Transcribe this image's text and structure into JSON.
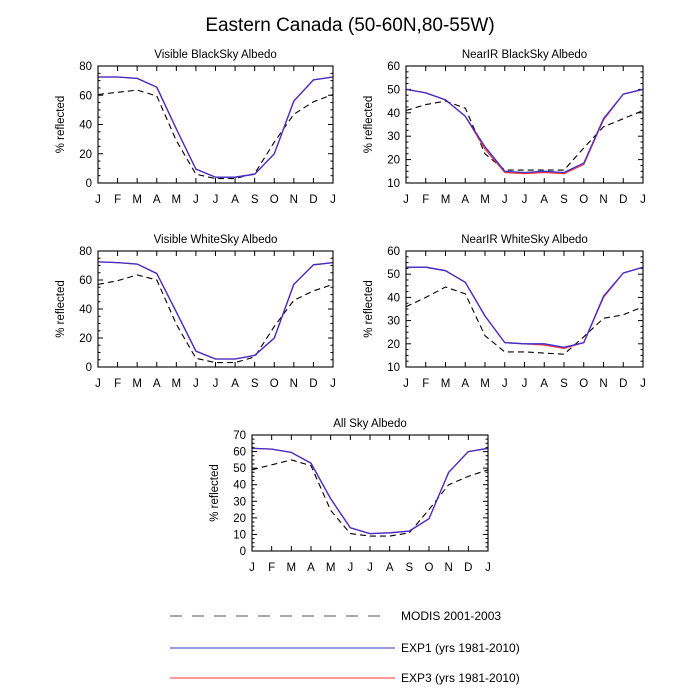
{
  "title": "Eastern Canada (50-60N,80-55W)",
  "colors": {
    "modis": "#000000",
    "exp1": "#3b2fd0",
    "exp3": "#ff3333",
    "legend_modis": "#8c8c8c"
  },
  "legend": [
    {
      "key": "modis",
      "label": "MODIS 2001-2003"
    },
    {
      "key": "exp1",
      "label": "EXP1 (yrs 1981-2010)"
    },
    {
      "key": "exp3",
      "label": "EXP3 (yrs 1981-2010)"
    }
  ],
  "chart_data": [
    {
      "type": "line",
      "title": "Visible BlackSky Albedo",
      "xlabel": "",
      "ylabel": "% reflected",
      "categories": [
        "J",
        "F",
        "M",
        "A",
        "M",
        "J",
        "J",
        "A",
        "S",
        "O",
        "N",
        "D",
        "J"
      ],
      "ylim": [
        0,
        80
      ],
      "yticks": [
        0,
        20,
        40,
        60,
        80
      ],
      "series": [
        {
          "name": "MODIS 2001-2003",
          "key": "modis",
          "values": [
            60.5,
            62,
            63.5,
            59.5,
            29,
            6,
            3,
            3,
            6.5,
            28,
            47,
            55.5,
            60.5
          ]
        },
        {
          "name": "EXP3 (yrs 1981-2010)",
          "key": "exp3",
          "values": [
            72.5,
            72.5,
            71.5,
            65.5,
            37,
            9.5,
            4,
            4,
            6,
            20,
            56,
            70.5,
            72.5
          ]
        },
        {
          "name": "EXP1 (yrs 1981-2010)",
          "key": "exp1",
          "values": [
            72.5,
            72.5,
            71.5,
            65.5,
            37,
            9.5,
            4,
            4,
            6,
            20,
            56,
            70.5,
            72.5
          ]
        }
      ]
    },
    {
      "type": "line",
      "title": "NearIR BlackSky Albedo",
      "xlabel": "",
      "ylabel": "% reflected",
      "categories": [
        "J",
        "F",
        "M",
        "A",
        "M",
        "J",
        "J",
        "A",
        "S",
        "O",
        "N",
        "D",
        "J"
      ],
      "ylim": [
        10,
        60
      ],
      "yticks": [
        10,
        20,
        30,
        40,
        50,
        60
      ],
      "series": [
        {
          "name": "MODIS 2001-2003",
          "key": "modis",
          "values": [
            41,
            43.5,
            45,
            42,
            22.5,
            15.5,
            15.5,
            15.5,
            15.5,
            25,
            34,
            37.5,
            41
          ]
        },
        {
          "name": "EXP3 (yrs 1981-2010)",
          "key": "exp3",
          "values": [
            50,
            48.5,
            45.5,
            38.5,
            24.5,
            14.5,
            14,
            14.5,
            14,
            18,
            37,
            48,
            50
          ]
        },
        {
          "name": "EXP1 (yrs 1981-2010)",
          "key": "exp1",
          "values": [
            50,
            48.5,
            45.5,
            38.5,
            25.5,
            15,
            14.5,
            15,
            14.5,
            18.5,
            37.5,
            48,
            50
          ]
        }
      ]
    },
    {
      "type": "line",
      "title": "Visible WhiteSky Albedo",
      "xlabel": "",
      "ylabel": "% reflected",
      "categories": [
        "J",
        "F",
        "M",
        "A",
        "M",
        "J",
        "J",
        "A",
        "S",
        "O",
        "N",
        "D",
        "J"
      ],
      "ylim": [
        0,
        80
      ],
      "yticks": [
        0,
        20,
        40,
        60,
        80
      ],
      "series": [
        {
          "name": "MODIS 2001-2003",
          "key": "modis",
          "values": [
            57,
            59.5,
            63.5,
            60,
            29.5,
            6,
            3,
            3,
            7,
            28,
            46,
            52.5,
            57
          ]
        },
        {
          "name": "EXP3 (yrs 1981-2010)",
          "key": "exp3",
          "values": [
            72.5,
            72,
            71,
            64.5,
            38,
            11,
            5.5,
            5.5,
            8,
            20,
            57,
            70.5,
            72
          ]
        },
        {
          "name": "EXP1 (yrs 1981-2010)",
          "key": "exp1",
          "values": [
            72.5,
            72,
            71,
            64.5,
            38,
            11,
            5.5,
            5.5,
            8,
            20,
            57,
            70.5,
            72
          ]
        }
      ]
    },
    {
      "type": "line",
      "title": "NearIR WhiteSky Albedo",
      "xlabel": "",
      "ylabel": "% reflected",
      "categories": [
        "J",
        "F",
        "M",
        "A",
        "M",
        "J",
        "J",
        "A",
        "S",
        "O",
        "N",
        "D",
        "J"
      ],
      "ylim": [
        10,
        60
      ],
      "yticks": [
        10,
        20,
        30,
        40,
        50,
        60
      ],
      "series": [
        {
          "name": "MODIS 2001-2003",
          "key": "modis",
          "values": [
            36,
            40,
            44.5,
            41.5,
            23.5,
            16.5,
            16.5,
            16,
            15.5,
            23,
            31,
            32.5,
            36
          ]
        },
        {
          "name": "EXP3 (yrs 1981-2010)",
          "key": "exp3",
          "values": [
            53,
            53,
            51.5,
            46.5,
            32,
            20.5,
            20,
            19.5,
            18,
            20.5,
            40,
            50.5,
            53
          ]
        },
        {
          "name": "EXP1 (yrs 1981-2010)",
          "key": "exp1",
          "values": [
            53,
            53,
            51.5,
            46.5,
            32,
            20.5,
            20,
            20,
            18.5,
            20.5,
            40.5,
            50.5,
            53
          ]
        }
      ]
    },
    {
      "type": "line",
      "title": "All Sky Albedo",
      "xlabel": "",
      "ylabel": "% reflected",
      "categories": [
        "J",
        "F",
        "M",
        "A",
        "M",
        "J",
        "J",
        "A",
        "S",
        "O",
        "N",
        "D",
        "J"
      ],
      "ylim": [
        0,
        70
      ],
      "yticks": [
        0,
        10,
        20,
        30,
        40,
        50,
        60,
        70
      ],
      "series": [
        {
          "name": "MODIS 2001-2003",
          "key": "modis",
          "values": [
            49,
            52,
            55,
            51.5,
            24.5,
            10.5,
            9,
            9,
            11,
            25,
            40,
            45,
            49
          ]
        },
        {
          "name": "EXP3 (yrs 1981-2010)",
          "key": "exp3",
          "values": [
            62,
            61.5,
            59.5,
            53,
            31.5,
            14,
            10.5,
            11,
            12,
            19.5,
            47.5,
            60,
            62
          ]
        },
        {
          "name": "EXP1 (yrs 1981-2010)",
          "key": "exp1",
          "values": [
            62,
            61.5,
            59.5,
            53,
            31.5,
            14,
            10.5,
            11,
            12,
            19.5,
            47.5,
            60,
            62
          ]
        }
      ]
    }
  ]
}
